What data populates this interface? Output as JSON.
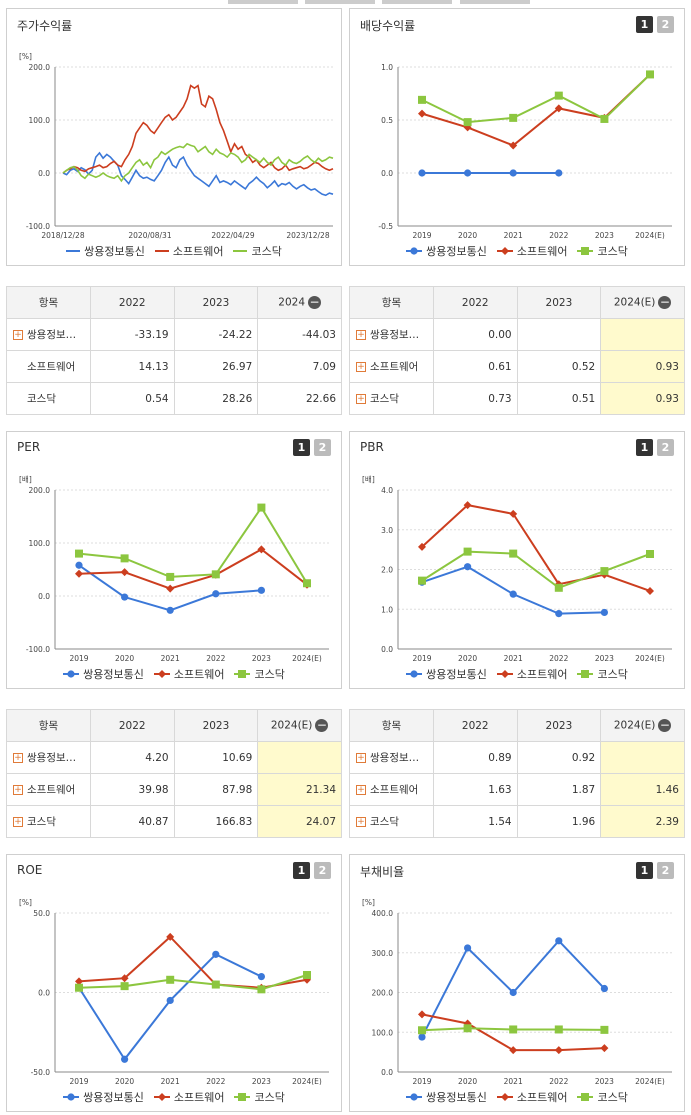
{
  "colors": {
    "series1": "#3b78d8",
    "series2": "#cc3e1f",
    "series3": "#8cc63f"
  },
  "legend": [
    "쌍용정보통신",
    "소프트웨어",
    "코스닥"
  ],
  "icons": {
    "row_expand": "plus-icon",
    "col_collapse": "minus-icon"
  },
  "pager": {
    "p1": "1",
    "p2": "2"
  },
  "stock": {
    "title": "주가수익률",
    "chart_data": {
      "type": "line",
      "unit": "[%]",
      "yticks": [
        "200.0",
        "100.0",
        "0.0",
        "-100.0"
      ],
      "ylim": [
        -100,
        200
      ],
      "xticks": [
        "2018/12/28",
        "2020/08/31",
        "2022/04/29",
        "2023/12/28"
      ],
      "series": [
        {
          "name": "쌍용정보통신",
          "values": [
            0,
            -3,
            5,
            8,
            3,
            10,
            6,
            -2,
            5,
            30,
            38,
            28,
            35,
            30,
            22,
            15,
            -5,
            -12,
            -20,
            -8,
            5,
            -5,
            -10,
            -8,
            -12,
            -15,
            -5,
            5,
            20,
            30,
            15,
            10,
            25,
            30,
            15,
            5,
            -5,
            -10,
            -15,
            -20,
            -25,
            -15,
            -5,
            -18,
            -15,
            -18,
            -22,
            -15,
            -20,
            -25,
            -30,
            -20,
            -15,
            -8,
            -15,
            -20,
            -28,
            -22,
            -15,
            -25,
            -20,
            -22,
            -18,
            -25,
            -30,
            -25,
            -22,
            -28,
            -32,
            -30,
            -35,
            -40,
            -42,
            -38,
            -40
          ]
        },
        {
          "name": "소프트웨어",
          "values": [
            0,
            5,
            8,
            12,
            10,
            5,
            3,
            8,
            10,
            12,
            15,
            10,
            12,
            18,
            22,
            15,
            12,
            25,
            35,
            50,
            75,
            85,
            95,
            90,
            80,
            75,
            85,
            95,
            105,
            110,
            100,
            105,
            115,
            125,
            140,
            165,
            160,
            165,
            130,
            125,
            145,
            140,
            120,
            95,
            80,
            60,
            40,
            55,
            45,
            50,
            35,
            30,
            20,
            25,
            15,
            10,
            15,
            20,
            10,
            5,
            8,
            15,
            5,
            8,
            10,
            12,
            8,
            10,
            15,
            20,
            18,
            12,
            8,
            5,
            8
          ]
        },
        {
          "name": "코스닥",
          "values": [
            0,
            5,
            10,
            12,
            5,
            -5,
            -10,
            -2,
            -5,
            -8,
            -5,
            0,
            -5,
            -8,
            -10,
            -5,
            -15,
            -5,
            0,
            10,
            20,
            25,
            15,
            20,
            10,
            25,
            30,
            40,
            35,
            40,
            45,
            48,
            50,
            48,
            55,
            52,
            50,
            40,
            45,
            50,
            40,
            35,
            45,
            38,
            35,
            30,
            38,
            35,
            30,
            20,
            25,
            35,
            30,
            25,
            20,
            28,
            20,
            15,
            25,
            30,
            20,
            15,
            25,
            20,
            18,
            22,
            28,
            32,
            25,
            20,
            28,
            22,
            25,
            30,
            28
          ]
        }
      ]
    }
  },
  "dividend": {
    "title": "배당수익률",
    "chart_data": {
      "type": "line",
      "yticks": [
        "1.0",
        "0.5",
        "0.0",
        "-0.5"
      ],
      "ylim": [
        -0.5,
        1.0
      ],
      "categories": [
        "2019",
        "2020",
        "2021",
        "2022",
        "2023",
        "2024(E)"
      ],
      "series": [
        {
          "name": "쌍용정보통신",
          "values": [
            0.0,
            0.0,
            0.0,
            0.0,
            null,
            null
          ]
        },
        {
          "name": "소프트웨어",
          "values": [
            0.56,
            0.43,
            0.26,
            0.61,
            0.52,
            0.93
          ]
        },
        {
          "name": "코스닥",
          "values": [
            0.69,
            0.48,
            0.52,
            0.73,
            0.51,
            0.93
          ]
        }
      ]
    }
  },
  "table1": {
    "head": [
      "항목",
      "2022",
      "2023",
      "2024"
    ],
    "rows": [
      {
        "name": "쌍용정보…",
        "plus": true,
        "v": [
          "-33.19",
          "-24.22",
          "-44.03"
        ]
      },
      {
        "name": "소프트웨어",
        "plus": false,
        "v": [
          "14.13",
          "26.97",
          "7.09"
        ]
      },
      {
        "name": "코스닥",
        "plus": false,
        "v": [
          "0.54",
          "28.26",
          "22.66"
        ]
      }
    ]
  },
  "table2": {
    "head": [
      "항목",
      "2022",
      "2023",
      "2024(E)"
    ],
    "rows": [
      {
        "name": "쌍용정보…",
        "plus": true,
        "v": [
          "0.00",
          "",
          ""
        ]
      },
      {
        "name": "소프트웨어",
        "plus": true,
        "v": [
          "0.61",
          "0.52",
          "0.93"
        ]
      },
      {
        "name": "코스닥",
        "plus": true,
        "v": [
          "0.73",
          "0.51",
          "0.93"
        ]
      }
    ]
  },
  "per": {
    "title": "PER",
    "chart_data": {
      "type": "line",
      "unit": "[배]",
      "yticks": [
        "200.0",
        "100.0",
        "0.0",
        "-100.0"
      ],
      "ylim": [
        -100,
        200
      ],
      "categories": [
        "2019",
        "2020",
        "2021",
        "2022",
        "2023",
        "2024(E)"
      ],
      "series": [
        {
          "name": "쌍용정보통신",
          "values": [
            58,
            -2,
            -27,
            4.2,
            10.69,
            null
          ]
        },
        {
          "name": "소프트웨어",
          "values": [
            42,
            45,
            14,
            39.98,
            87.98,
            21.34
          ]
        },
        {
          "name": "코스닥",
          "values": [
            80,
            71,
            36,
            40.87,
            166.83,
            24.07
          ]
        }
      ]
    }
  },
  "pbr": {
    "title": "PBR",
    "chart_data": {
      "type": "line",
      "unit": "[배]",
      "yticks": [
        "4.0",
        "3.0",
        "2.0",
        "1.0",
        "0.0"
      ],
      "ylim": [
        0,
        4
      ],
      "categories": [
        "2019",
        "2020",
        "2021",
        "2022",
        "2023",
        "2024(E)"
      ],
      "series": [
        {
          "name": "쌍용정보통신",
          "values": [
            1.68,
            2.07,
            1.38,
            0.89,
            0.92,
            null
          ]
        },
        {
          "name": "소프트웨어",
          "values": [
            2.57,
            3.62,
            3.4,
            1.63,
            1.87,
            1.46
          ]
        },
        {
          "name": "코스닥",
          "values": [
            1.72,
            2.45,
            2.4,
            1.54,
            1.96,
            2.39
          ]
        }
      ]
    }
  },
  "table3": {
    "head": [
      "항목",
      "2022",
      "2023",
      "2024(E)"
    ],
    "rows": [
      {
        "name": "쌍용정보…",
        "plus": true,
        "v": [
          "4.20",
          "10.69",
          ""
        ]
      },
      {
        "name": "소프트웨어",
        "plus": true,
        "v": [
          "39.98",
          "87.98",
          "21.34"
        ]
      },
      {
        "name": "코스닥",
        "plus": true,
        "v": [
          "40.87",
          "166.83",
          "24.07"
        ]
      }
    ]
  },
  "table4": {
    "head": [
      "항목",
      "2022",
      "2023",
      "2024(E)"
    ],
    "rows": [
      {
        "name": "쌍용정보…",
        "plus": true,
        "v": [
          "0.89",
          "0.92",
          ""
        ]
      },
      {
        "name": "소프트웨어",
        "plus": true,
        "v": [
          "1.63",
          "1.87",
          "1.46"
        ]
      },
      {
        "name": "코스닥",
        "plus": true,
        "v": [
          "1.54",
          "1.96",
          "2.39"
        ]
      }
    ]
  },
  "roe": {
    "title": "ROE",
    "chart_data": {
      "type": "line",
      "unit": "[%]",
      "yticks": [
        "50.0",
        "0.0",
        "-50.0"
      ],
      "ylim": [
        -50,
        50
      ],
      "categories": [
        "2019",
        "2020",
        "2021",
        "2022",
        "2023",
        "2024(E)"
      ],
      "series": [
        {
          "name": "쌍용정보통신",
          "values": [
            3,
            -42,
            -5,
            24,
            10,
            null
          ]
        },
        {
          "name": "소프트웨어",
          "values": [
            7,
            9,
            35,
            5,
            3,
            8
          ]
        },
        {
          "name": "코스닥",
          "values": [
            3,
            4,
            8,
            5,
            2,
            11
          ]
        }
      ]
    }
  },
  "debt": {
    "title": "부채비율",
    "chart_data": {
      "type": "line",
      "unit": "[%]",
      "yticks": [
        "400.0",
        "300.0",
        "200.0",
        "100.0",
        "0.0"
      ],
      "ylim": [
        0,
        400
      ],
      "categories": [
        "2019",
        "2020",
        "2021",
        "2022",
        "2023",
        "2024(E)"
      ],
      "series": [
        {
          "name": "쌍용정보통신",
          "values": [
            88,
            312,
            200,
            330,
            210,
            null
          ]
        },
        {
          "name": "소프트웨어",
          "values": [
            145,
            122,
            55,
            55,
            60,
            null
          ]
        },
        {
          "name": "코스닥",
          "values": [
            105,
            110,
            107,
            107,
            106,
            null
          ]
        }
      ]
    }
  }
}
